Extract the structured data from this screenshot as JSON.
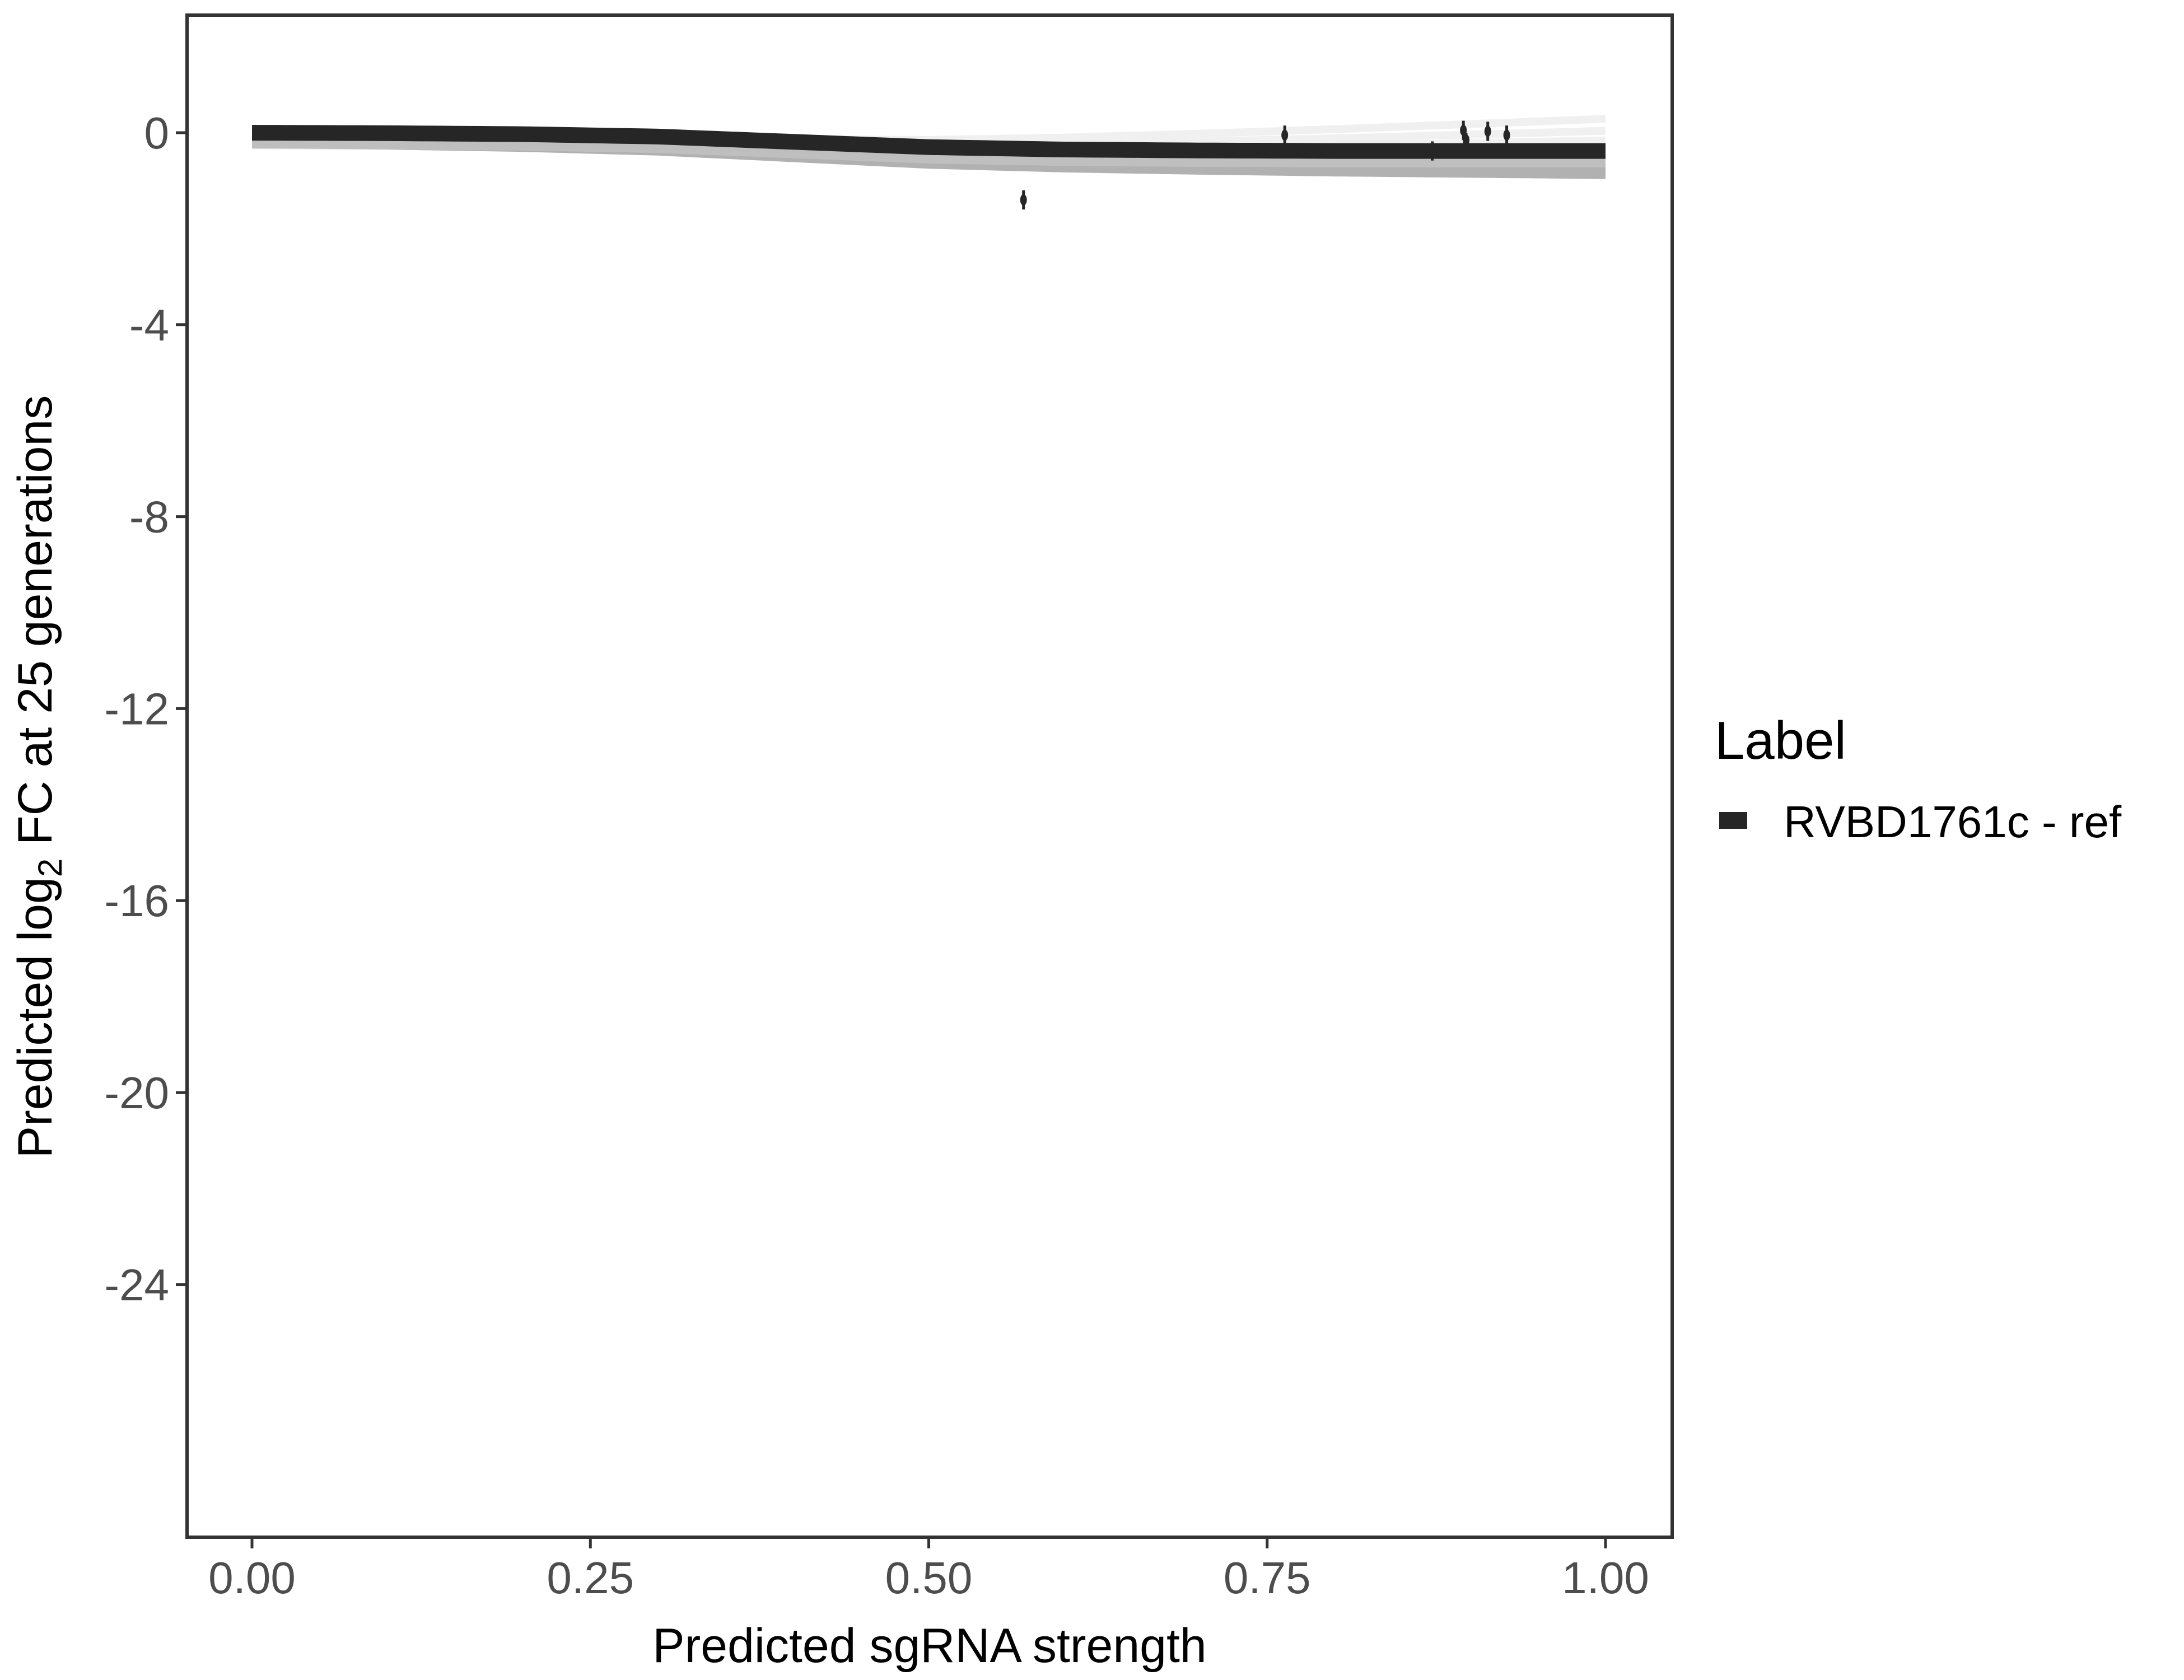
{
  "chart_data": {
    "type": "line",
    "title": "",
    "xlabel": "Predicted sgRNA strength",
    "ylabel_parts": [
      "Predicted  log",
      "2",
      " FC at 25 generations"
    ],
    "xlim": [
      -0.05,
      1.05
    ],
    "ylim": [
      -29.3,
      2.5
    ],
    "x_ticks": [
      0,
      0.25,
      0.5,
      0.75,
      1
    ],
    "x_tick_labels": [
      "0.00",
      "0.25",
      "0.50",
      "0.75",
      "1.00"
    ],
    "y_ticks": [
      0,
      -4,
      -8,
      -12,
      -16,
      -20,
      -24
    ],
    "y_tick_labels": [
      "0",
      "-4",
      "-8",
      "-12",
      "-16",
      "-20",
      "-24"
    ],
    "grid": false,
    "legend": {
      "title": "Label",
      "placement": "right",
      "entries": [
        {
          "label": "RVBD1761c - ref",
          "color": "#262626"
        }
      ]
    },
    "fit_line": {
      "name": "RVBD1761c - ref",
      "color": "#262626",
      "x": [
        0,
        0.1,
        0.2,
        0.3,
        0.4,
        0.5,
        0.6,
        0.7,
        0.8,
        0.9,
        1.0
      ],
      "y": [
        0,
        -0.01,
        -0.03,
        -0.08,
        -0.19,
        -0.3,
        -0.35,
        -0.37,
        -0.38,
        -0.38,
        -0.38
      ]
    },
    "posterior_band": {
      "color": "#a8a8a8",
      "upper": 0,
      "lower_offset": -0.45
    },
    "posterior_faint_lines_end": [
      -0.9,
      -1.1,
      -1.3,
      -1.55
    ],
    "points": [
      {
        "x": 0.57,
        "y": -1.4,
        "err": 0.2
      },
      {
        "x": 0.763,
        "y": -0.05,
        "err": 0.2
      },
      {
        "x": 0.872,
        "y": -0.38,
        "err": 0.2
      },
      {
        "x": 0.895,
        "y": 0.05,
        "err": 0.2
      },
      {
        "x": 0.897,
        "y": -0.15,
        "err": 0.15
      },
      {
        "x": 0.913,
        "y": 0.03,
        "err": 0.2
      },
      {
        "x": 0.927,
        "y": -0.05,
        "err": 0.2
      }
    ]
  }
}
